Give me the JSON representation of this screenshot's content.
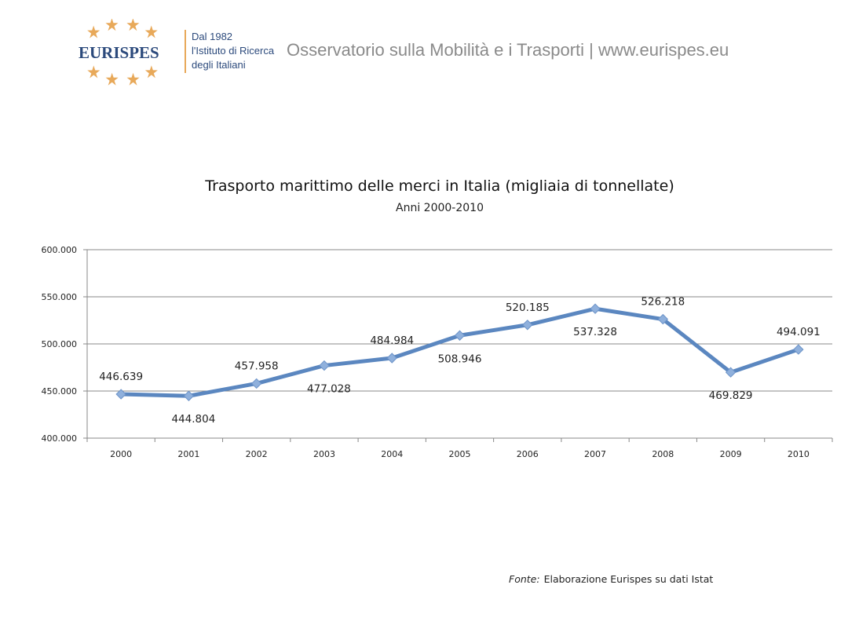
{
  "header": {
    "logo_text": "EURISPES",
    "logo_tagline": [
      "Dal 1982",
      "l'Istituto di Ricerca",
      "degli Italiani"
    ],
    "title": "Osservatorio sulla Mobilità e i Trasporti | www.eurispes.eu",
    "brand_color": "#2c4a7c",
    "accent_color": "#e8a95a"
  },
  "chart_data": {
    "type": "line",
    "title": "Trasporto marittimo delle merci in Italia (migliaia di tonnellate)",
    "subtitle": "Anni 2000-2010",
    "categories": [
      "2000",
      "2001",
      "2002",
      "2003",
      "2004",
      "2005",
      "2006",
      "2007",
      "2008",
      "2009",
      "2010"
    ],
    "values": [
      446639,
      444804,
      457958,
      477028,
      484984,
      508946,
      520185,
      537328,
      526218,
      469829,
      494091
    ],
    "data_labels": [
      "446.639",
      "444.804",
      "457.958",
      "477.028",
      "484.984",
      "508.946",
      "520.185",
      "537.328",
      "526.218",
      "469.829",
      "494.091"
    ],
    "ylim": [
      400000,
      600000
    ],
    "yticks": [
      "400.000",
      "450.000",
      "500.000",
      "550.000",
      "600.000"
    ],
    "grid": true,
    "legend": "none",
    "line_color": "#5b87c0",
    "marker": "diamond"
  },
  "footer": {
    "source_label": "Fonte:",
    "source_text": " Elaborazione Eurispes su dati Istat"
  }
}
